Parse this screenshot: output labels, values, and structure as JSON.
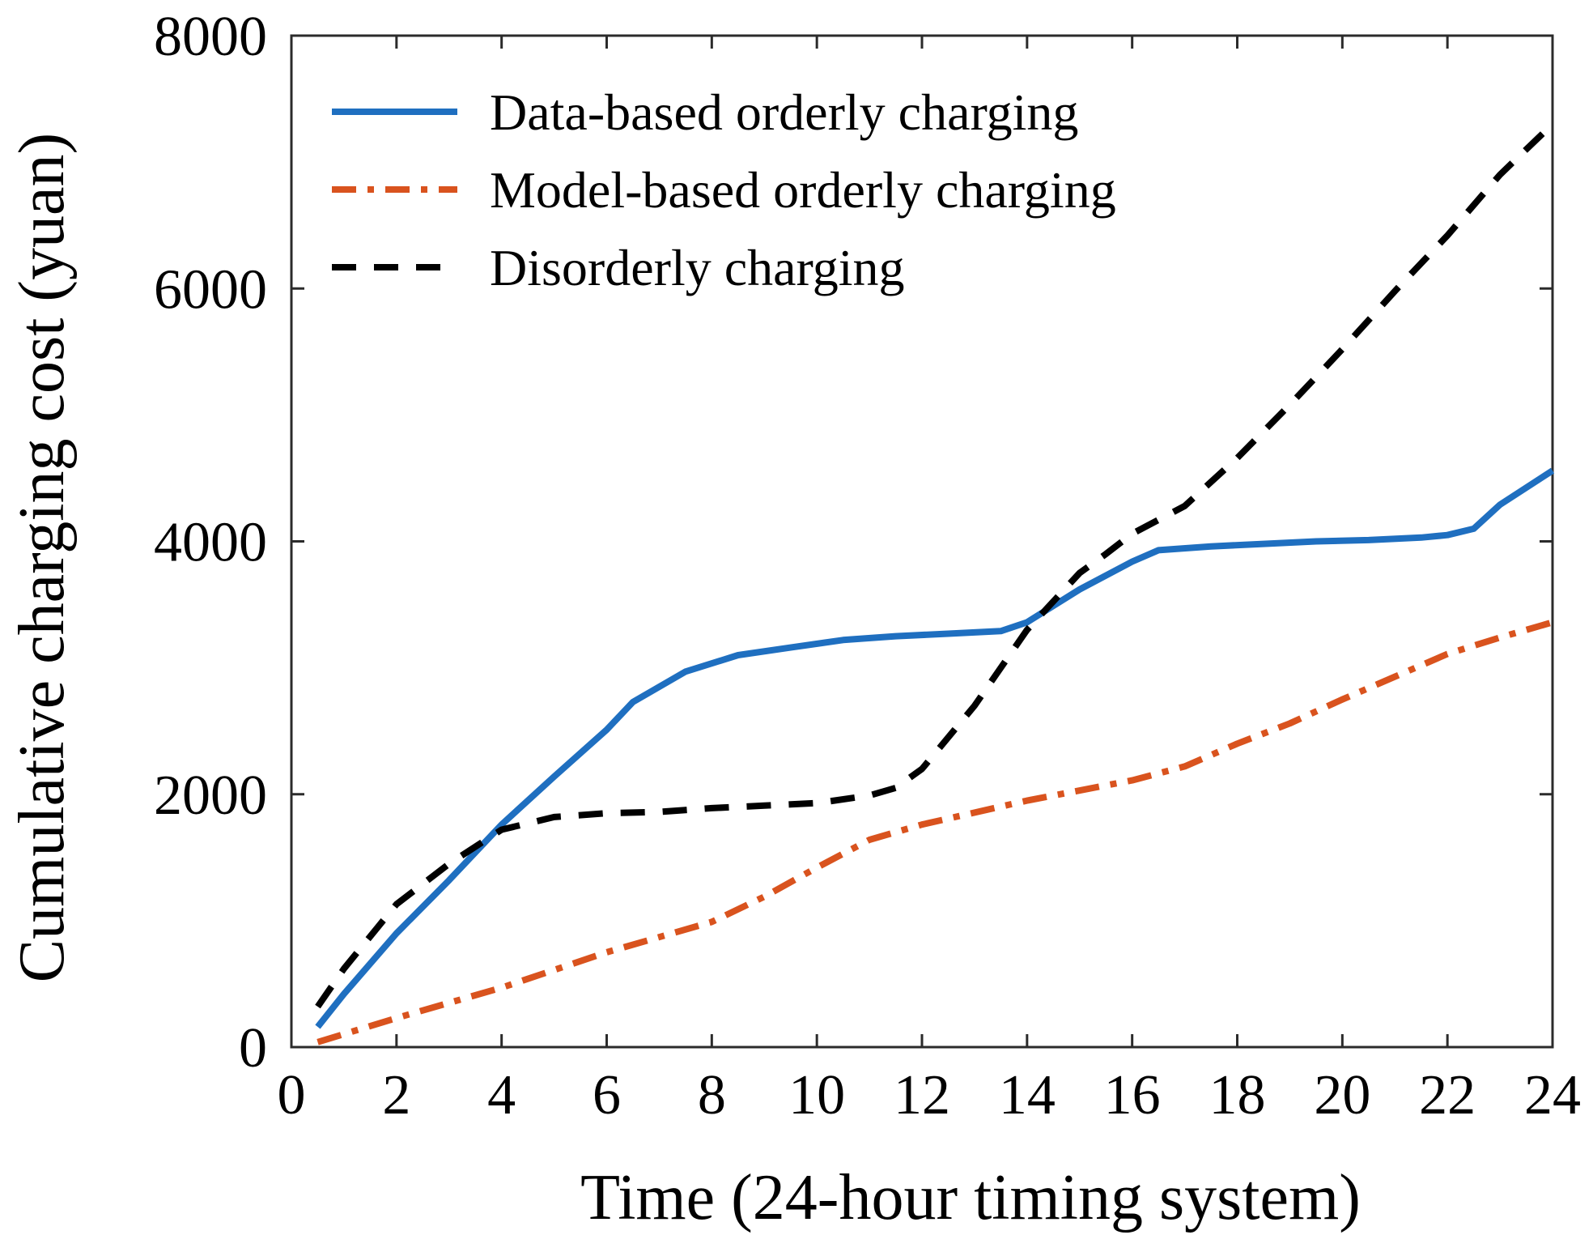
{
  "chart_data": {
    "type": "line",
    "title": "",
    "xlabel": "Time (24-hour timing system)",
    "ylabel": "Cumulative charging cost (yuan)",
    "xlim": [
      0,
      24
    ],
    "ylim": [
      0,
      8000
    ],
    "xticks": [
      0,
      2,
      4,
      6,
      8,
      10,
      12,
      14,
      16,
      18,
      20,
      22,
      24
    ],
    "yticks": [
      0,
      2000,
      4000,
      6000,
      8000
    ],
    "grid": false,
    "legend_position": "top-left",
    "series": [
      {
        "name": "Data-based orderly charging",
        "color": "#1f6fc0",
        "style": "solid",
        "x": [
          0.5,
          1,
          2,
          3,
          4,
          5,
          6,
          6.5,
          7.5,
          8.5,
          9.5,
          10.5,
          11.5,
          12.5,
          13.5,
          14,
          15,
          16,
          16.5,
          17.5,
          18.5,
          19.5,
          20.5,
          21.5,
          22,
          22.5,
          23,
          24
        ],
        "y": [
          160,
          420,
          900,
          1320,
          1760,
          2140,
          2510,
          2730,
          2970,
          3100,
          3160,
          3220,
          3250,
          3270,
          3290,
          3360,
          3620,
          3840,
          3930,
          3960,
          3980,
          4000,
          4010,
          4030,
          4050,
          4100,
          4290,
          4560
        ]
      },
      {
        "name": "Model-based orderly charging",
        "color": "#d9531e",
        "style": "dashdot",
        "x": [
          0.5,
          2,
          4,
          6,
          8,
          9,
          10,
          11,
          12,
          14,
          16,
          17,
          18,
          19,
          20,
          21,
          22,
          23,
          24
        ],
        "y": [
          40,
          230,
          470,
          750,
          990,
          1190,
          1420,
          1640,
          1760,
          1950,
          2110,
          2220,
          2400,
          2560,
          2750,
          2930,
          3110,
          3240,
          3360
        ]
      },
      {
        "name": "Disorderly charging",
        "color": "#000000",
        "style": "dashed",
        "x": [
          0.5,
          1,
          2,
          3,
          4,
          5,
          6,
          7,
          8,
          9,
          10,
          11,
          11.5,
          12,
          13,
          14,
          15,
          15.5,
          16,
          17,
          18,
          19,
          20,
          21,
          22,
          23,
          24
        ],
        "y": [
          320,
          620,
          1130,
          1450,
          1720,
          1820,
          1850,
          1860,
          1890,
          1910,
          1930,
          1990,
          2050,
          2200,
          2700,
          3300,
          3750,
          3900,
          4060,
          4280,
          4660,
          5080,
          5520,
          5980,
          6420,
          6900,
          7300
        ]
      }
    ]
  }
}
